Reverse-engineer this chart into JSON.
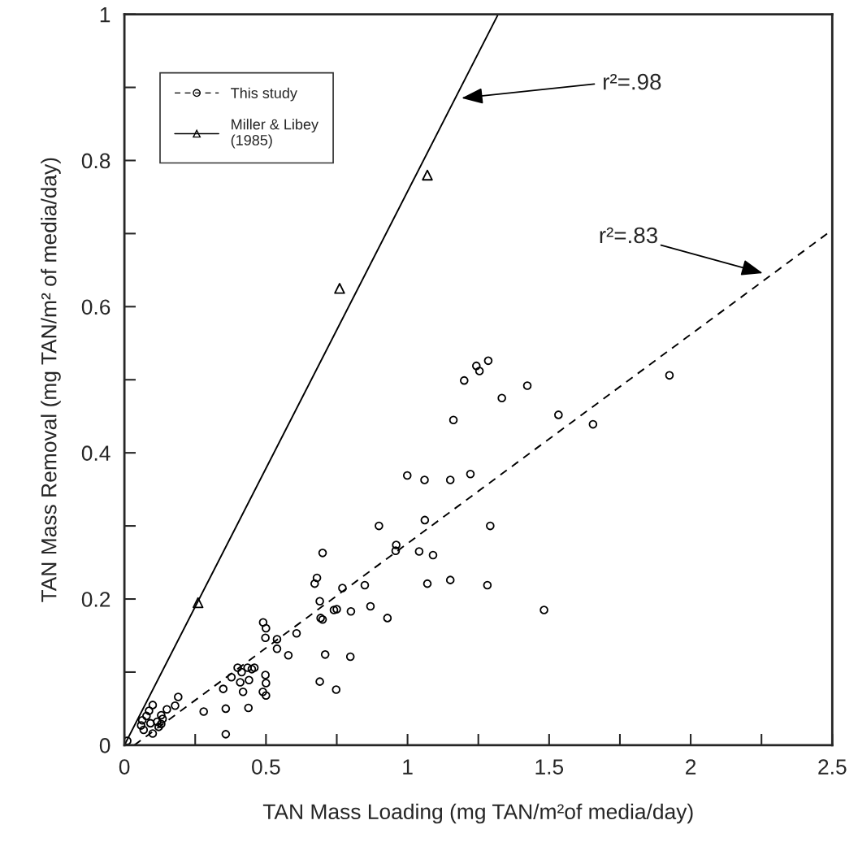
{
  "chart_data": {
    "type": "scatter",
    "xlabel": "TAN Mass Loading (mg TAN/m²of media/day)",
    "ylabel": "TAN Mass Removal (mg TAN/m² of media/day)",
    "xlim": [
      0,
      2.5
    ],
    "ylim": [
      0,
      1
    ],
    "xticks": [
      0,
      {
        "value": 0.25,
        "label": null
      },
      0.5,
      {
        "value": 0.75,
        "label": null
      },
      1,
      {
        "value": 1.25,
        "label": null
      },
      1.5,
      {
        "value": 1.75,
        "label": null
      },
      2,
      {
        "value": 2.25,
        "label": null
      },
      2.5
    ],
    "yticks": [
      0,
      {
        "value": 0.1,
        "label": null
      },
      0.2,
      {
        "value": 0.3,
        "label": null
      },
      0.4,
      {
        "value": 0.5,
        "label": null
      },
      0.6,
      {
        "value": 0.7,
        "label": null
      },
      0.8,
      {
        "value": 0.9,
        "label": null
      },
      1
    ],
    "grid": false,
    "legend": "top left",
    "series": [
      {
        "name": "This study",
        "marker": "circle",
        "color": "#000000",
        "x": [
          0.01,
          0.1,
          0.087,
          0.078,
          0.063,
          0.059,
          0.068,
          0.1,
          0.092,
          0.116,
          0.13,
          0.135,
          0.121,
          0.15,
          0.179,
          0.19,
          0.13,
          0.28,
          0.358,
          0.358,
          0.438,
          0.349,
          0.378,
          0.4,
          0.414,
          0.409,
          0.419,
          0.44,
          0.435,
          0.459,
          0.45,
          0.498,
          0.5,
          0.489,
          0.5,
          0.498,
          0.539,
          0.539,
          0.579,
          0.709,
          0.798,
          0.69,
          0.748,
          0.608,
          0.49,
          0.5,
          1.285,
          1.243,
          1.254,
          1.2,
          1.423,
          1.333,
          1.162,
          1.925,
          1.533,
          1.655,
          0.999,
          1.06,
          1.151,
          1.222,
          0.899,
          1.061,
          1.292,
          0.96,
          0.958,
          1.041,
          1.09,
          0.849,
          1.07,
          1.151,
          1.282,
          0.869,
          0.929,
          1.482,
          0.7,
          0.68,
          0.672,
          0.69,
          0.693,
          0.7,
          0.74,
          0.75,
          0.77,
          0.8
        ],
        "values": [
          0.006,
          0.055,
          0.047,
          0.04,
          0.034,
          0.027,
          0.021,
          0.016,
          0.03,
          0.032,
          0.029,
          0.036,
          0.025,
          0.049,
          0.054,
          0.066,
          0.041,
          0.046,
          0.015,
          0.05,
          0.051,
          0.077,
          0.093,
          0.106,
          0.1,
          0.086,
          0.073,
          0.089,
          0.106,
          0.106,
          0.104,
          0.096,
          0.085,
          0.073,
          0.068,
          0.147,
          0.145,
          0.132,
          0.123,
          0.124,
          0.121,
          0.087,
          0.076,
          0.153,
          0.168,
          0.16,
          0.526,
          0.519,
          0.512,
          0.499,
          0.492,
          0.475,
          0.445,
          0.506,
          0.452,
          0.439,
          0.369,
          0.363,
          0.363,
          0.371,
          0.3,
          0.308,
          0.3,
          0.274,
          0.266,
          0.265,
          0.26,
          0.219,
          0.221,
          0.226,
          0.219,
          0.19,
          0.174,
          0.185,
          0.263,
          0.229,
          0.221,
          0.197,
          0.174,
          0.172,
          0.185,
          0.186,
          0.215,
          0.183
        ]
      },
      {
        "type": "line",
        "line_style": "dashed",
        "color": "#000000",
        "x": [
          0.035,
          2.5
        ],
        "values": [
          0,
          0.705
        ]
      },
      {
        "name": "Miller & Libey\n(1985)",
        "marker": "triangle",
        "color": "#000000",
        "x": [
          0.26,
          0.76,
          1.07
        ],
        "values": [
          0.195,
          0.625,
          0.78
        ]
      },
      {
        "type": "line",
        "line_style": "solid",
        "color": "#000000",
        "x": [
          0,
          1.32
        ],
        "values": [
          0,
          1
        ]
      }
    ],
    "annotations": [
      "r²=.98",
      "r²=.83"
    ]
  }
}
